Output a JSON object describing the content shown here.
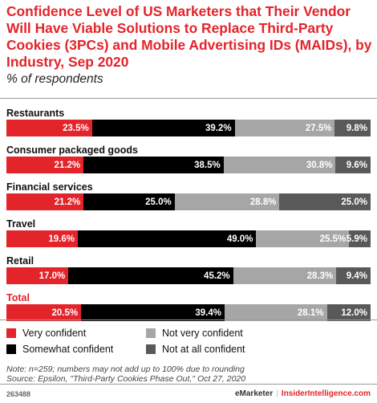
{
  "title": "Confidence Level of US Marketers that Their Vendor Will Have Viable Solutions to Replace Third-Party Cookies (3PCs) and Mobile Advertising IDs (MAIDs), by Industry, Sep 2020",
  "subtitle": "% of respondents",
  "chart_data": {
    "type": "bar",
    "orientation": "horizontal",
    "stacked": true,
    "categories": [
      "Restaurants",
      "Consumer packaged goods",
      "Financial services",
      "Travel",
      "Retail",
      "Total"
    ],
    "series": [
      {
        "name": "Very confident",
        "color": "#e3242b",
        "values": [
          23.5,
          21.2,
          21.2,
          19.6,
          17.0,
          20.5
        ],
        "labels": [
          "23.5%",
          "21.2%",
          "21.2%",
          "19.6%",
          "17.0%",
          "20.5%"
        ]
      },
      {
        "name": "Somewhat confident",
        "color": "#000000",
        "values": [
          39.2,
          38.5,
          25.0,
          49.0,
          45.2,
          39.4
        ],
        "labels": [
          "39.2%",
          "38.5%",
          "25.0%",
          "49.0%",
          "45.2%",
          "39.4%"
        ]
      },
      {
        "name": "Not very confident",
        "color": "#a6a6a6",
        "values": [
          27.5,
          30.8,
          28.8,
          25.5,
          28.3,
          28.1
        ],
        "labels": [
          "27.5%",
          "30.8%",
          "28.8%",
          "25.5%",
          "28.3%",
          "28.1%"
        ]
      },
      {
        "name": "Not at all confident",
        "color": "#595959",
        "values": [
          9.8,
          9.6,
          25.0,
          5.9,
          9.4,
          12.0
        ],
        "labels": [
          "9.8%",
          "9.6%",
          "25.0%",
          "5.9%",
          "9.4%",
          "12.0%"
        ]
      }
    ],
    "legend_position": "bottom"
  },
  "note": "Note: n=259; numbers may not add up to 100% due to rounding",
  "source": "Source: Epsilon, \"Third-Party Cookies Phase Out,\" Oct 27, 2020",
  "chart_id": "263488",
  "brand": "eMarketer",
  "brand_sep": "|",
  "site": "InsiderIntelligence.com"
}
